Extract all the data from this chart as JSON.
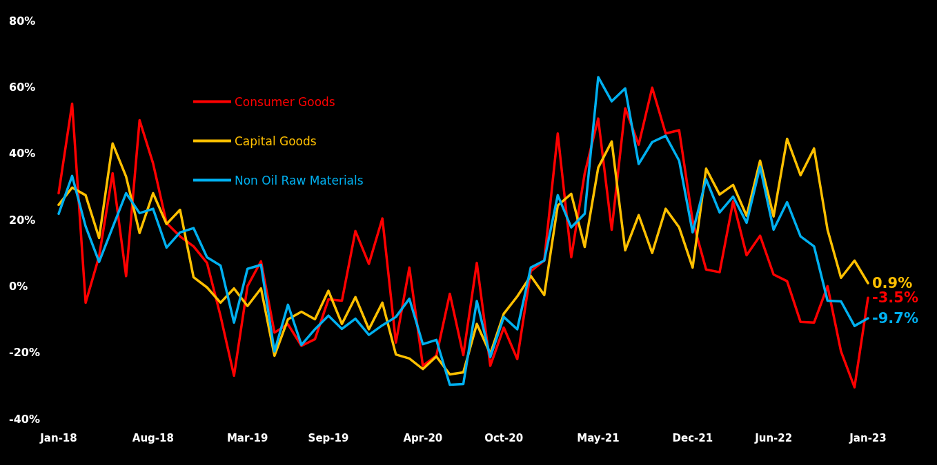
{
  "chart_data": {
    "type": "line",
    "categories": [
      "Jan-18",
      null,
      null,
      null,
      null,
      null,
      null,
      "Aug-18",
      null,
      null,
      null,
      null,
      null,
      null,
      "Mar-19",
      null,
      null,
      null,
      null,
      null,
      "Sep-19",
      null,
      null,
      null,
      null,
      null,
      null,
      "Apr-20",
      null,
      null,
      null,
      null,
      null,
      "Oct-20",
      null,
      null,
      null,
      null,
      null,
      null,
      "May-21",
      null,
      null,
      null,
      null,
      null,
      null,
      "Dec-21",
      null,
      null,
      null,
      null,
      null,
      "Jun-22",
      null,
      null,
      null,
      null,
      null,
      null,
      "Jan-23"
    ],
    "series": [
      {
        "name": "Consumer Goods",
        "color": "#ff0000",
        "values": [
          28,
          55,
          -5,
          9,
          34,
          3,
          50,
          37,
          19,
          15,
          12,
          7,
          -9,
          -27,
          0,
          7.5,
          -14,
          -11.5,
          -18,
          -16,
          -4,
          -4.4,
          16.6,
          6.7,
          20.4,
          -17,
          5.6,
          -24,
          -21,
          -2.3,
          -20.8,
          7,
          -24,
          -12.5,
          -22,
          4.5,
          7.7,
          46,
          8.7,
          34,
          50.5,
          17,
          53.6,
          42.6,
          59.8,
          46,
          47,
          19.7,
          5,
          4.2,
          25.5,
          9.3,
          15.2,
          3.5,
          1.5,
          -10.8,
          -11,
          0,
          -19.7,
          -30.5,
          -3.5
        ],
        "value_labels": [
          null,
          null,
          null,
          null,
          null,
          null,
          null,
          null,
          null,
          null,
          null,
          null,
          null,
          null,
          null,
          null,
          null,
          null,
          null,
          null,
          null,
          null,
          null,
          null,
          null,
          null,
          null,
          null,
          null,
          null,
          null,
          null,
          null,
          null,
          null,
          null,
          null,
          null,
          null,
          null,
          null,
          null,
          null,
          null,
          null,
          null,
          null,
          null,
          null,
          null,
          null,
          null,
          null,
          null,
          null,
          null,
          null,
          null,
          null,
          null,
          "-3.5%"
        ]
      },
      {
        "name": "Capital Goods",
        "color": "#ffc000",
        "values": [
          24.5,
          29.7,
          27.4,
          14.5,
          43,
          33,
          16,
          28,
          18.7,
          23,
          2.7,
          -0.4,
          -5,
          -0.7,
          -6,
          -0.7,
          -21,
          -10,
          -7.7,
          -10,
          -1.4,
          -11.4,
          -3.3,
          -13,
          -5,
          -20.6,
          -21.8,
          -25,
          -21.2,
          -26.6,
          -26,
          -11.4,
          -20.4,
          -8.3,
          -3.1,
          3.1,
          -2.7,
          24.3,
          27.8,
          11.8,
          35.7,
          43.6,
          10.8,
          21.4,
          10,
          23.3,
          17.7,
          5.6,
          35.4,
          27.6,
          30.5,
          21.2,
          37.8,
          21,
          44.4,
          33.4,
          41.5,
          17,
          2.5,
          7.7,
          0.9
        ],
        "value_labels": [
          null,
          null,
          null,
          null,
          null,
          null,
          null,
          null,
          null,
          null,
          null,
          null,
          null,
          null,
          null,
          null,
          null,
          null,
          null,
          null,
          null,
          null,
          null,
          null,
          null,
          null,
          null,
          null,
          null,
          null,
          null,
          null,
          null,
          null,
          null,
          null,
          null,
          null,
          null,
          null,
          null,
          null,
          null,
          null,
          null,
          null,
          null,
          null,
          null,
          null,
          null,
          null,
          null,
          null,
          null,
          null,
          null,
          null,
          null,
          null,
          "0.9%"
        ]
      },
      {
        "name": "Non Oil Raw Materials",
        "color": "#00b0f0",
        "values": [
          21.8,
          33.2,
          18,
          7.3,
          17.7,
          28,
          22,
          23.3,
          11.6,
          16.2,
          17.5,
          8.7,
          6.2,
          -11,
          5.2,
          6.4,
          -19.7,
          -5.6,
          -17.7,
          -13,
          -8.9,
          -12.9,
          -9.8,
          -14.7,
          -11.8,
          -9.3,
          -3.8,
          -17.5,
          -16.2,
          -29.7,
          -29.5,
          -4.5,
          -21.4,
          -9.3,
          -13,
          5.6,
          7.7,
          27.4,
          17.7,
          21.8,
          63,
          55.7,
          59.6,
          36.8,
          43.4,
          45.3,
          37.8,
          16.2,
          32.2,
          22.2,
          27,
          19.1,
          36,
          17,
          25.3,
          15,
          12,
          -4.4,
          -4.6,
          -12,
          -9.7
        ],
        "value_labels": [
          null,
          null,
          null,
          null,
          null,
          null,
          null,
          null,
          null,
          null,
          null,
          null,
          null,
          null,
          null,
          null,
          null,
          null,
          null,
          null,
          null,
          null,
          null,
          null,
          null,
          null,
          null,
          null,
          null,
          null,
          null,
          null,
          null,
          null,
          null,
          null,
          null,
          null,
          null,
          null,
          null,
          null,
          null,
          null,
          null,
          null,
          null,
          null,
          null,
          null,
          null,
          null,
          null,
          null,
          null,
          null,
          null,
          null,
          null,
          null,
          "-9.7%"
        ]
      }
    ],
    "ylim": [
      -40,
      80
    ],
    "yticks": [
      {
        "value": -40,
        "label": "-40%"
      },
      {
        "value": -20,
        "label": "-20%"
      },
      {
        "value": 0,
        "label": "0%"
      },
      {
        "value": 20,
        "label": "20%"
      },
      {
        "value": 40,
        "label": "40%"
      },
      {
        "value": 60,
        "label": "60%"
      },
      {
        "value": 80,
        "label": "80%"
      }
    ],
    "legend": "top left",
    "grid": false,
    "marker": "none",
    "line_style": "solid"
  }
}
